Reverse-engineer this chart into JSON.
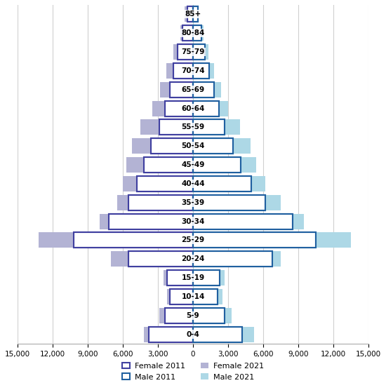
{
  "age_groups": [
    "0-4",
    "5-9",
    "10-14",
    "15-19",
    "20-24",
    "25-29",
    "30-34",
    "35-39",
    "40-44",
    "45-49",
    "50-54",
    "55-59",
    "60-64",
    "65-69",
    "70-74",
    "75-79",
    "80-84",
    "85+"
  ],
  "female_2011": [
    3800,
    2400,
    2000,
    2200,
    5500,
    10200,
    7200,
    5500,
    4800,
    4200,
    3600,
    2900,
    2400,
    2000,
    1700,
    1300,
    900,
    500
  ],
  "female_2021": [
    4200,
    2900,
    2200,
    2500,
    7000,
    13200,
    8000,
    6500,
    6000,
    5700,
    5200,
    4500,
    3500,
    2800,
    2300,
    1700,
    1100,
    700
  ],
  "male_2011": [
    4200,
    2700,
    2100,
    2300,
    6800,
    10500,
    8500,
    6200,
    5000,
    4100,
    3400,
    2700,
    2200,
    1800,
    1400,
    1000,
    700,
    400
  ],
  "male_2021": [
    5200,
    3300,
    2500,
    2700,
    7500,
    13500,
    9500,
    7500,
    6200,
    5400,
    4900,
    4000,
    3000,
    2400,
    1800,
    1300,
    900,
    500
  ],
  "color_female_2021_fill": "#b3b3d4",
  "color_male_2021_fill": "#add8e6",
  "edgecolor_female_2011": "#4040a0",
  "edgecolor_male_2011": "#2060a0",
  "xlim": 15000,
  "xticklabels": [
    "15,000",
    "12,000",
    "9,000",
    "6,000",
    "3,000",
    "0",
    "3,000",
    "6,000",
    "9,000",
    "12,000",
    "15,000"
  ],
  "bar_height": 0.82,
  "figsize": [
    5.5,
    5.46
  ],
  "dpi": 100,
  "background_color": "#ffffff",
  "grid_color": "#d0d0d0",
  "label_fontsize": 7.5,
  "legend_fontsize": 8.0
}
